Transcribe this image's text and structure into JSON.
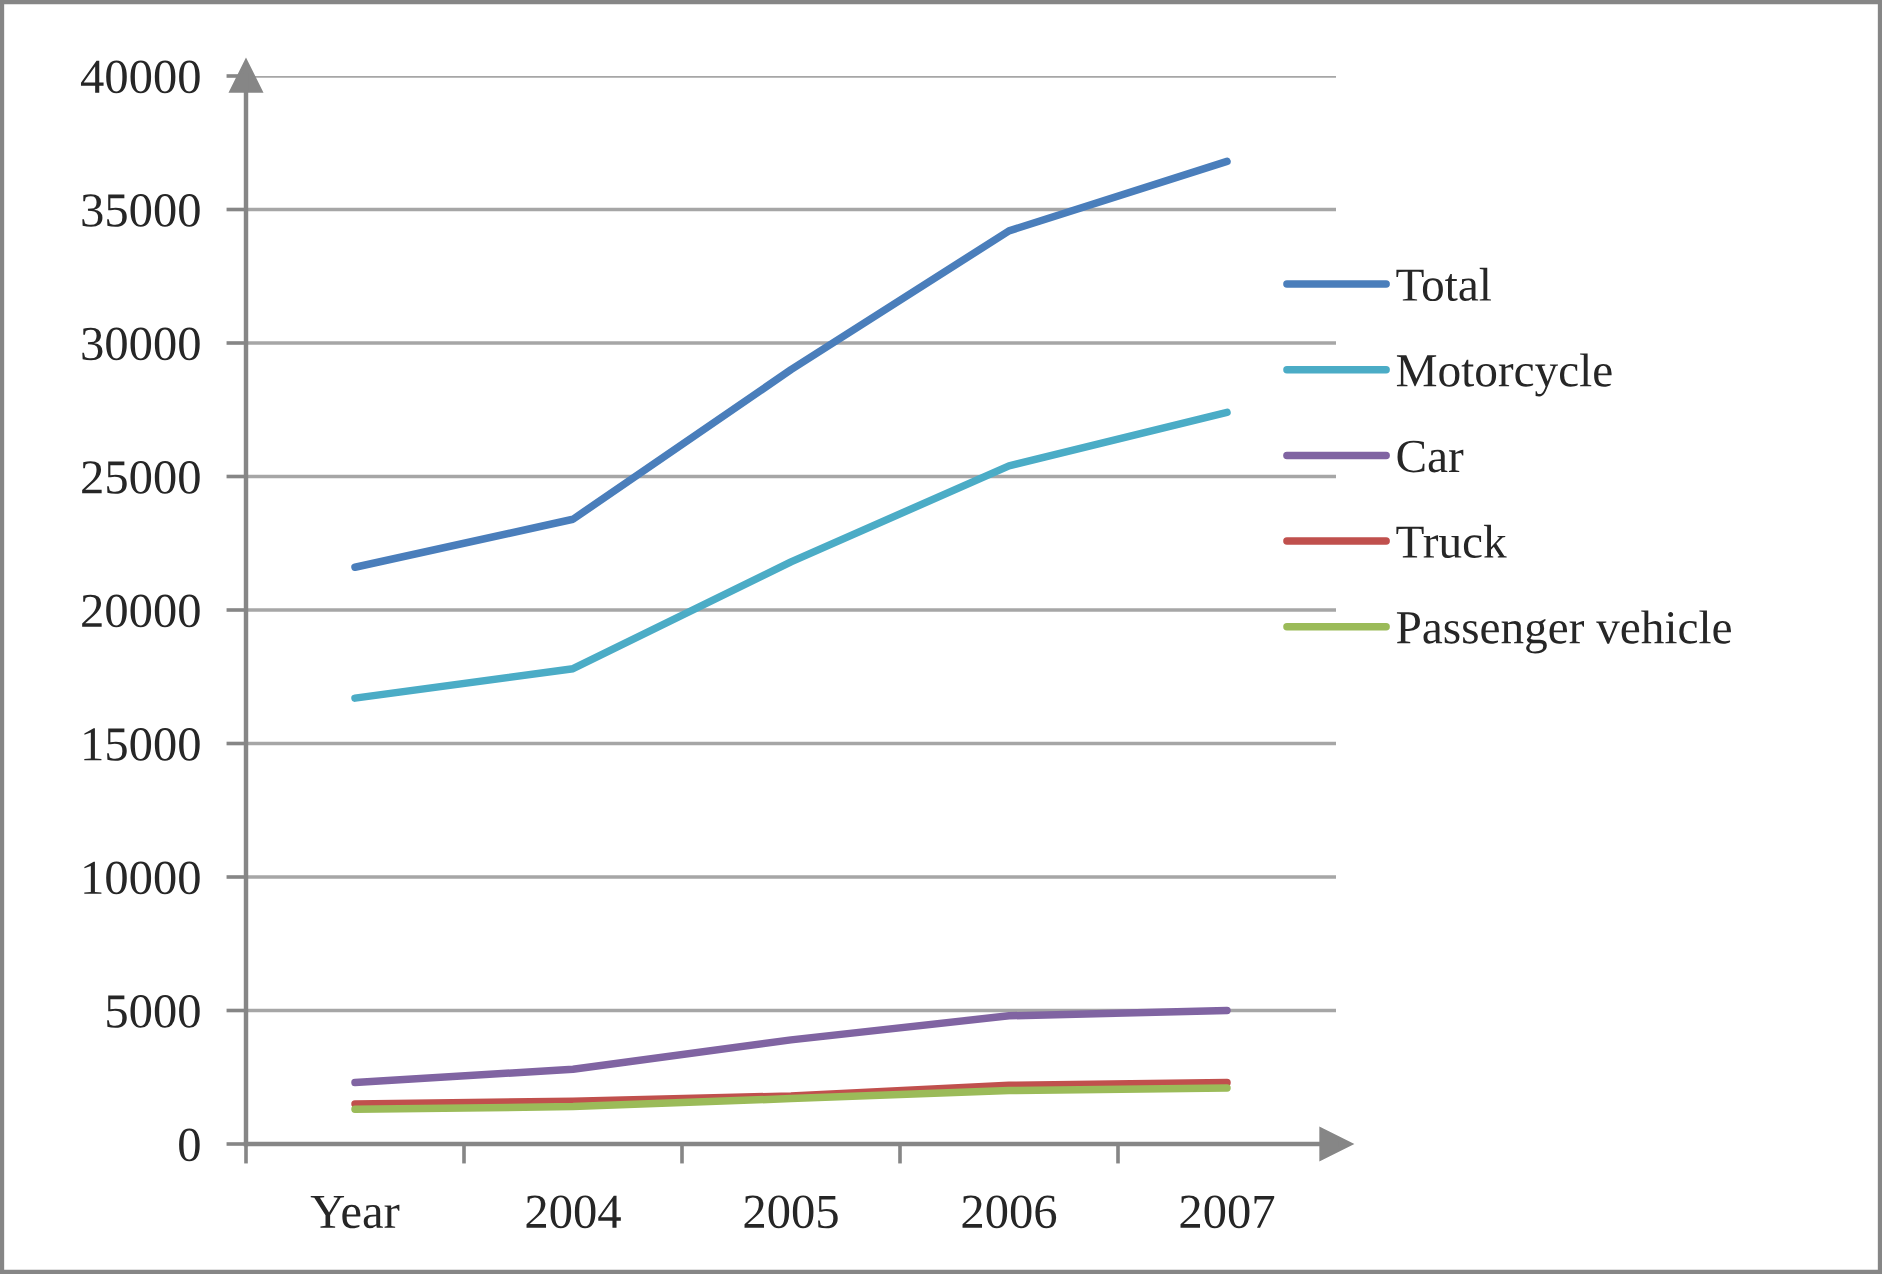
{
  "chart_data": {
    "type": "line",
    "categories": [
      "Year",
      "2004",
      "2005",
      "2006",
      "2007"
    ],
    "series": [
      {
        "name": "Total",
        "color": "#4a7ebb",
        "values": [
          21600,
          23400,
          29000,
          34200,
          36800
        ]
      },
      {
        "name": "Motorcycle",
        "color": "#4bacc6",
        "values": [
          16700,
          17800,
          21800,
          25400,
          27400
        ]
      },
      {
        "name": "Car",
        "color": "#8064a2",
        "values": [
          2300,
          2800,
          3900,
          4800,
          5000
        ]
      },
      {
        "name": "Truck",
        "color": "#c0504d",
        "values": [
          1500,
          1600,
          1800,
          2200,
          2300
        ]
      },
      {
        "name": "Passenger vehicle",
        "color": "#9bbb59",
        "values": [
          1300,
          1400,
          1700,
          2000,
          2100
        ]
      }
    ],
    "ylim": [
      0,
      40000
    ],
    "yticks": [
      0,
      5000,
      10000,
      15000,
      20000,
      25000,
      30000,
      35000,
      40000
    ],
    "grid": "y",
    "legend": "right"
  }
}
